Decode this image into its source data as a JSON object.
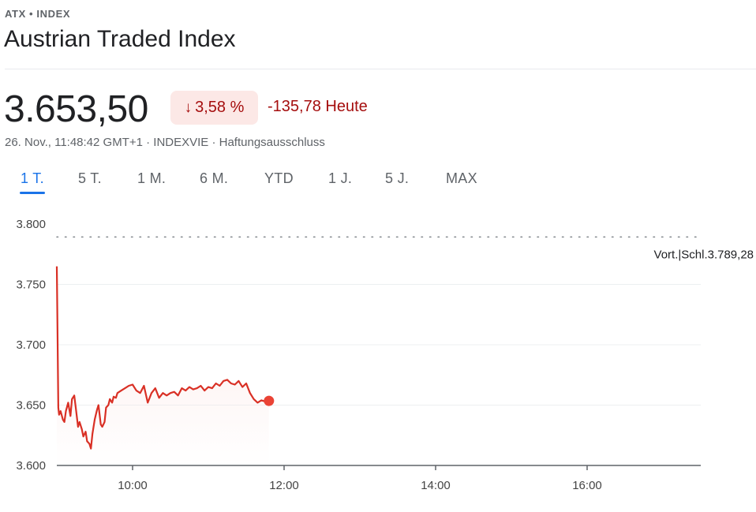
{
  "header": {
    "breadcrumb": "ATX • INDEX",
    "title": "Austrian Traded Index"
  },
  "quote": {
    "price": "3.653,50",
    "change_percent": "3,58 %",
    "arrow_icon": "arrow-down-icon",
    "change_abs": "-135,78 Heute",
    "meta": "26. Nov., 11:48:42 GMT+1 · INDEXVIE · Haftungsausschluss"
  },
  "tabs": [
    {
      "label": "1 T.",
      "active": true
    },
    {
      "label": "5 T.",
      "active": false
    },
    {
      "label": "1 M.",
      "active": false
    },
    {
      "label": "6 M.",
      "active": false
    },
    {
      "label": "YTD",
      "active": false
    },
    {
      "label": "1 J.",
      "active": false
    },
    {
      "label": "5 J.",
      "active": false
    },
    {
      "label": "MAX",
      "active": false
    }
  ],
  "colors": {
    "negative": "#a50e0e",
    "line": "#d93025",
    "marker": "#ea4335",
    "accent": "#1a73e8"
  },
  "chart_data": {
    "type": "line",
    "x_unit": "hours",
    "xlim": [
      9.0,
      17.5
    ],
    "ylim": [
      3600,
      3800
    ],
    "x_ticks": [
      10,
      12,
      14,
      16
    ],
    "x_tick_labels": [
      "10:00",
      "12:00",
      "14:00",
      "16:00"
    ],
    "y_ticks": [
      3600,
      3650,
      3700,
      3750,
      3800
    ],
    "y_tick_labels": [
      "3.600",
      "3.650",
      "3.700",
      "3.750",
      "3.800"
    ],
    "grid": true,
    "previous_close": {
      "value": 3789.28,
      "label": "Vort.|Schl.3.789,28"
    },
    "series": [
      {
        "x": [
          9.0,
          9.02,
          9.03,
          9.05,
          9.08,
          9.1,
          9.12,
          9.15,
          9.18,
          9.2,
          9.23,
          9.25,
          9.28,
          9.3,
          9.33,
          9.35,
          9.38,
          9.4,
          9.43,
          9.45,
          9.47,
          9.5,
          9.53,
          9.55,
          9.58,
          9.6,
          9.63,
          9.65,
          9.68,
          9.7,
          9.73,
          9.75,
          9.78,
          9.8,
          9.85,
          9.9,
          9.95,
          10.0,
          10.05,
          10.1,
          10.15,
          10.2,
          10.25,
          10.3,
          10.35,
          10.4,
          10.45,
          10.5,
          10.55,
          10.6,
          10.65,
          10.7,
          10.75,
          10.8,
          10.85,
          10.9,
          10.95,
          11.0,
          11.05,
          11.1,
          11.15,
          11.2,
          11.25,
          11.3,
          11.35,
          11.4,
          11.45,
          11.5,
          11.55,
          11.6,
          11.65,
          11.7,
          11.75,
          11.8
        ],
        "y": [
          3765,
          3648,
          3642,
          3645,
          3638,
          3636,
          3645,
          3652,
          3641,
          3655,
          3658,
          3648,
          3632,
          3636,
          3630,
          3624,
          3628,
          3620,
          3618,
          3614,
          3626,
          3638,
          3646,
          3650,
          3634,
          3632,
          3636,
          3648,
          3650,
          3655,
          3652,
          3657,
          3656,
          3660,
          3662,
          3664,
          3666,
          3667,
          3662,
          3660,
          3666,
          3652,
          3660,
          3664,
          3656,
          3660,
          3658,
          3660,
          3661,
          3658,
          3664,
          3662,
          3665,
          3663,
          3664,
          3666,
          3662,
          3665,
          3664,
          3668,
          3666,
          3670,
          3671,
          3668,
          3667,
          3670,
          3665,
          3668,
          3660,
          3655,
          3652,
          3654,
          3653,
          3653.5
        ]
      }
    ]
  }
}
